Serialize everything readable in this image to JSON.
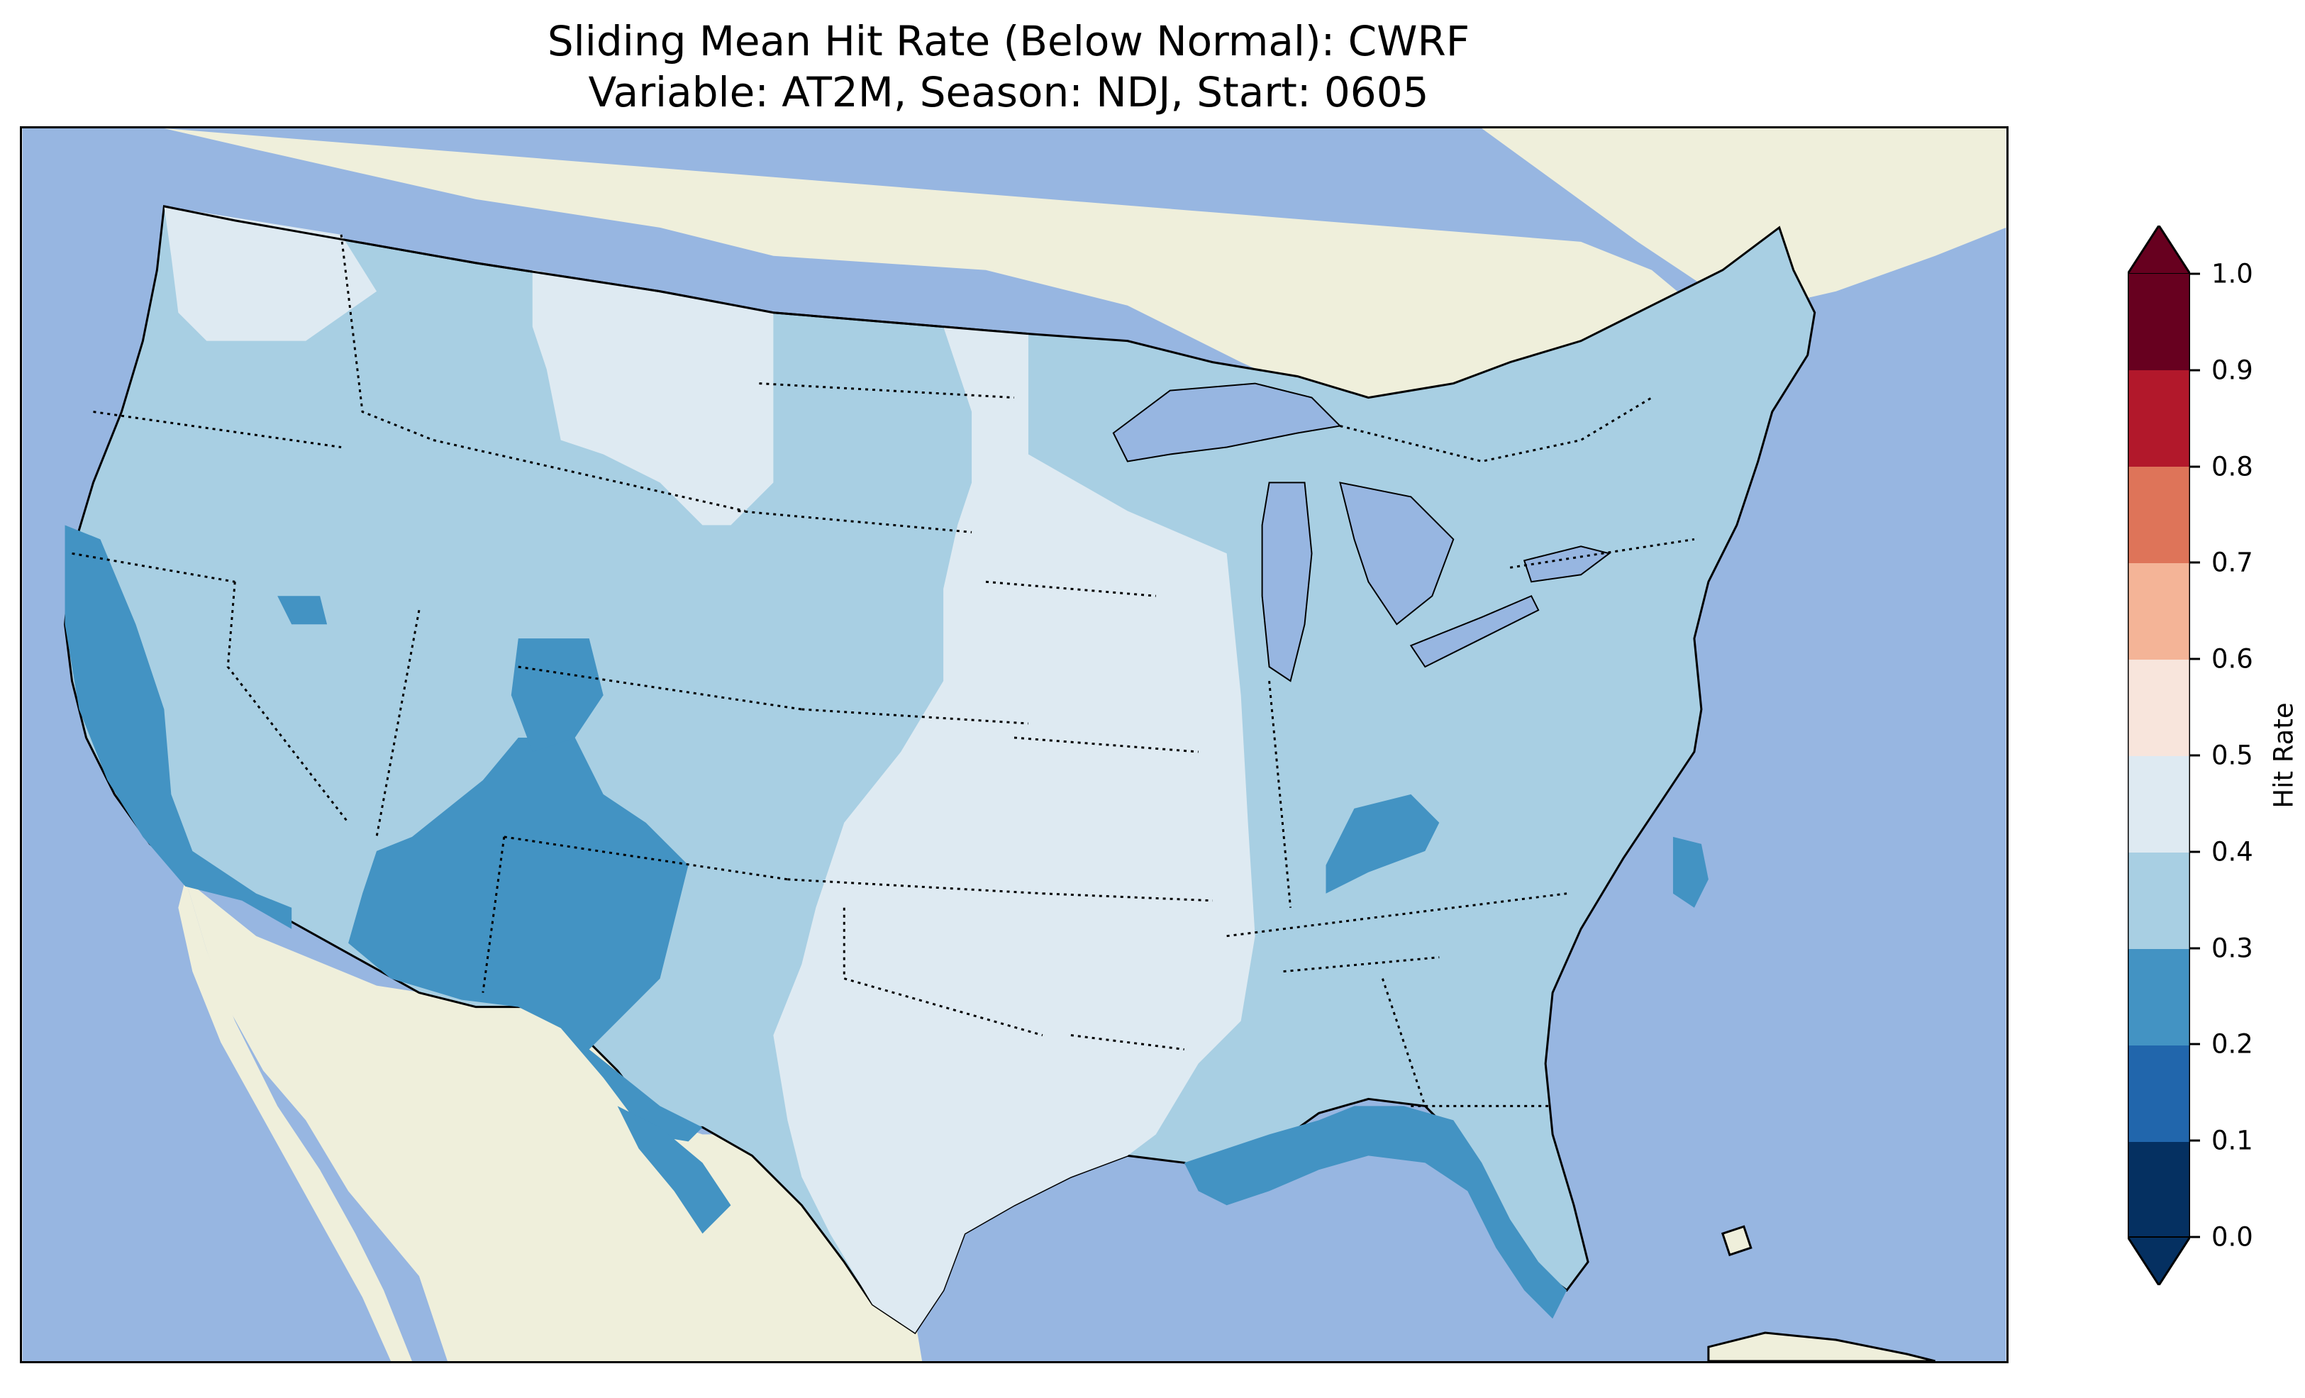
{
  "title": {
    "line1": "Sliding Mean Hit Rate (Below Normal): CWRF",
    "line2": "Variable: AT2M, Season: NDJ, Start: 0605"
  },
  "colors": {
    "ocean": "#97b6e1",
    "land_outside": "#efefdb",
    "band_0.0_0.1": "#053061",
    "band_0.1_0.2": "#2166ac",
    "band_0.2_0.3": "#4393c3",
    "band_0.3_0.4": "#a8cfe3",
    "band_0.4_0.5": "#deeaf2",
    "band_0.5_0.6": "#f8e5dc",
    "band_0.6_0.7": "#f4b497",
    "band_0.7_0.8": "#de7459",
    "band_0.8_0.9": "#b2182b",
    "band_0.9_1.0": "#67001f"
  },
  "colorbar": {
    "label": "Hit Rate",
    "ticks": [
      "0.0",
      "0.1",
      "0.2",
      "0.3",
      "0.4",
      "0.5",
      "0.6",
      "0.7",
      "0.8",
      "0.9",
      "1.0"
    ],
    "extend": "both"
  },
  "map": {
    "region": "Contiguous United States",
    "dominant_bands": {
      "central_plains_texas_midwest": "0.4-0.5",
      "west_east_general": "0.3-0.4",
      "southwest_four_corners_gulf_coast_florida": "0.2-0.3"
    }
  }
}
